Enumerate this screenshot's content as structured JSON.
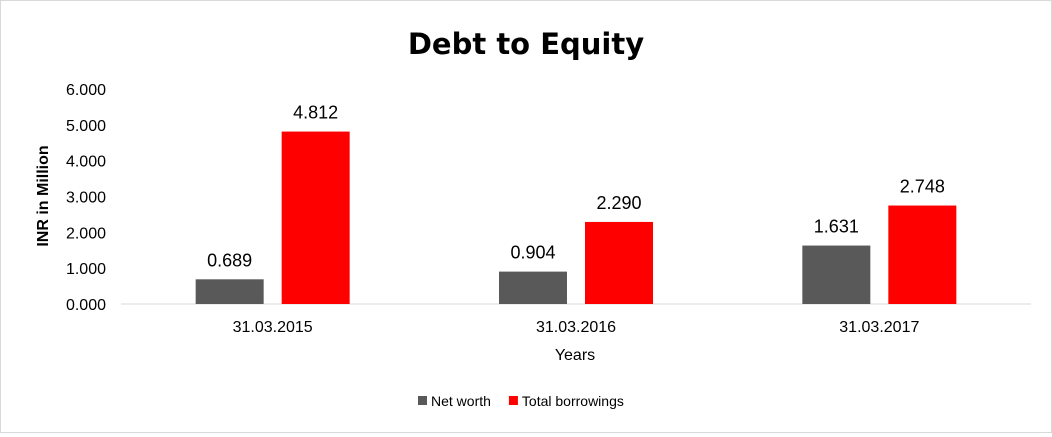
{
  "chart_data": {
    "type": "bar",
    "title": "Debt to Equity",
    "xlabel": "Years",
    "ylabel": "INR in Million",
    "categories": [
      "31.03.2015",
      "31.03.2016",
      "31.03.2017"
    ],
    "series": [
      {
        "name": "Net worth",
        "color": "#595959",
        "values": [
          0.689,
          0.904,
          1.631
        ],
        "labels": [
          "0.689",
          "0.904",
          "1.631"
        ]
      },
      {
        "name": "Total borrowings",
        "color": "#ff0000",
        "values": [
          4.812,
          2.29,
          2.748
        ],
        "labels": [
          "4.812",
          "2.290",
          "2.748"
        ]
      }
    ],
    "ylim": [
      0,
      6
    ],
    "yticks": [
      0,
      1,
      2,
      3,
      4,
      5,
      6
    ],
    "ytick_labels": [
      "0.000",
      "1.000",
      "2.000",
      "3.000",
      "4.000",
      "5.000",
      "6.000"
    ],
    "grid": false,
    "legend": "bottom-center"
  }
}
